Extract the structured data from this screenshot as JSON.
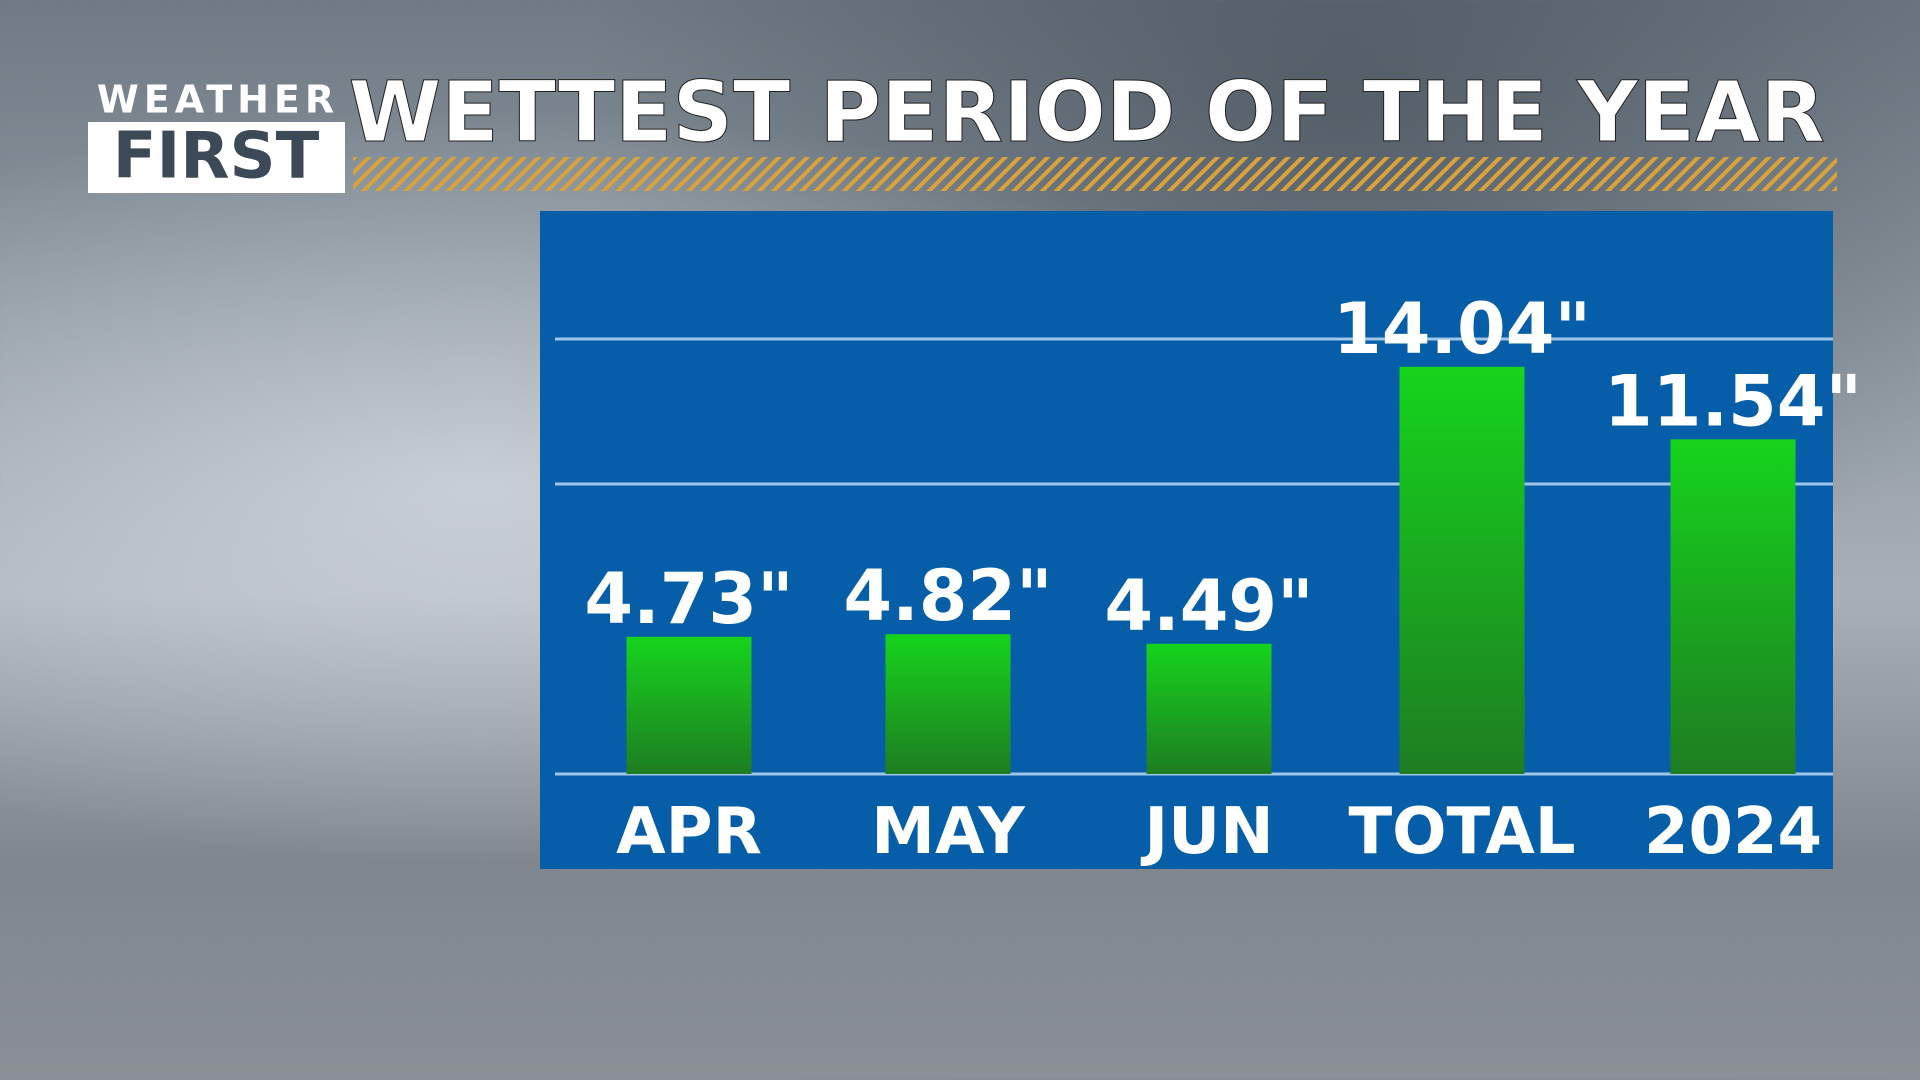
{
  "logo": {
    "top": "WEATHER",
    "bottom": "FIRST"
  },
  "chart_data": {
    "type": "bar",
    "title": "WETTEST PERIOD OF THE YEAR",
    "categories": [
      "APR",
      "MAY",
      "JUN",
      "TOTAL",
      "2024"
    ],
    "values": [
      4.73,
      4.82,
      4.49,
      14.04,
      11.54
    ],
    "value_labels": [
      "4.73\"",
      "4.82\"",
      "4.49\"",
      "14.04\"",
      "11.54\""
    ],
    "color": "#16d41c",
    "ylim": [
      0,
      20
    ],
    "yticks": [
      0,
      10,
      15
    ],
    "grid": true
  }
}
